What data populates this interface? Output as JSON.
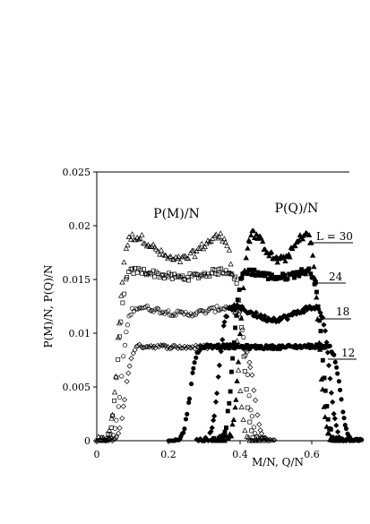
{
  "chart_data": {
    "type": "scatter",
    "xlabel": "M/N, Q/N",
    "ylabel": "P(M)/N, P(Q)/N",
    "xlim": [
      0,
      0.7
    ],
    "ylim": [
      0,
      0.025
    ],
    "x_ticks": [
      "0",
      "0.2",
      "0.4",
      "0.6"
    ],
    "y_ticks": [
      "0",
      "0.005",
      "0.01",
      "0.015",
      "0.02",
      "0.025"
    ],
    "annotations": {
      "pm": "P(M)/N",
      "pq": "P(Q)/N",
      "L30": "L = 30",
      "L24": "24",
      "L18": "18",
      "L12": "12"
    },
    "pm_series": [
      {
        "name": "L = 30",
        "marker": "open-triangle",
        "L": 30,
        "peak": 0.019,
        "valley": 0.0168,
        "x_lo": 0.06,
        "x_hi": 0.39
      },
      {
        "name": "24",
        "marker": "open-square",
        "L": 24,
        "peak": 0.0158,
        "valley": 0.0152,
        "x_lo": 0.06,
        "x_hi": 0.41
      },
      {
        "name": "18",
        "marker": "open-circle",
        "L": 18,
        "peak": 0.0124,
        "valley": 0.0118,
        "x_lo": 0.07,
        "x_hi": 0.42
      },
      {
        "name": "12",
        "marker": "open-diamond",
        "L": 12,
        "peak": 0.0088,
        "valley": 0.0087,
        "x_lo": 0.08,
        "x_hi": 0.44
      }
    ],
    "pq_series": [
      {
        "name": "L = 30",
        "marker": "filled-triangle",
        "L": 30,
        "peak": 0.0194,
        "valley": 0.0168,
        "x_lo": 0.4,
        "x_hi": 0.62
      },
      {
        "name": "24",
        "marker": "filled-square",
        "L": 24,
        "peak": 0.0158,
        "valley": 0.0152,
        "x_lo": 0.38,
        "x_hi": 0.63
      },
      {
        "name": "18",
        "marker": "filled-diamond",
        "L": 18,
        "peak": 0.0124,
        "valley": 0.0113,
        "x_lo": 0.34,
        "x_hi": 0.65
      },
      {
        "name": "12",
        "marker": "filled-circle",
        "L": 12,
        "peak": 0.0088,
        "valley": 0.0087,
        "x_lo": 0.26,
        "x_hi": 0.68
      }
    ]
  }
}
